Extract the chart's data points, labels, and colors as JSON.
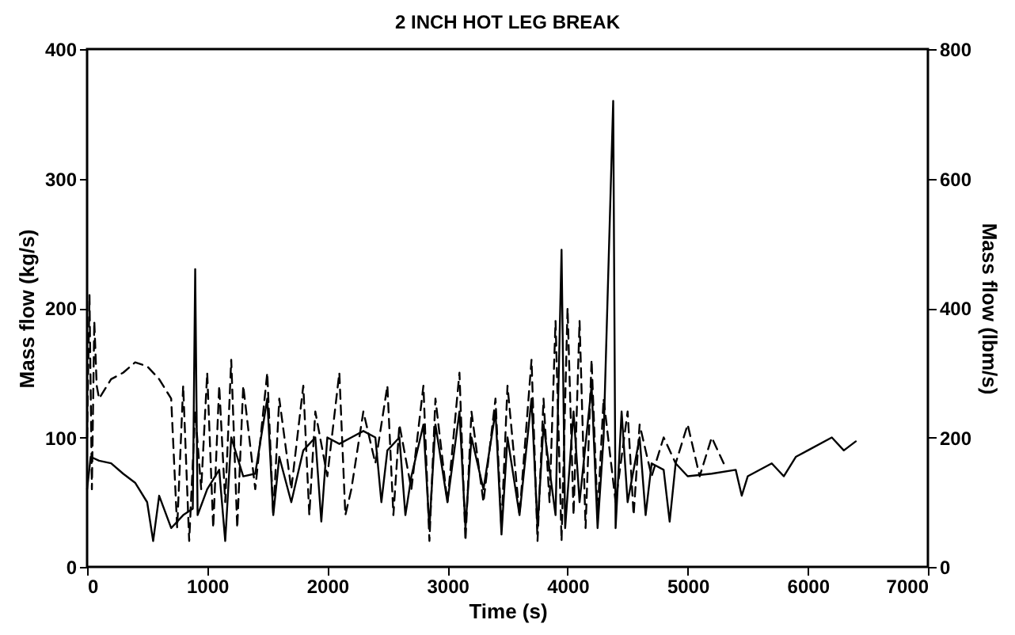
{
  "chart_data": {
    "type": "line",
    "title": "2 INCH HOT LEG BREAK",
    "xlabel": "Time (s)",
    "ylabel": "Mass flow (kg/s)",
    "y2label": "Mass flow (lbm/s)",
    "xlim": [
      0,
      7000
    ],
    "xticks": [
      0,
      1000,
      2000,
      3000,
      4000,
      5000,
      6000,
      7000
    ],
    "ylim": [
      0,
      400
    ],
    "yticks": [
      0,
      100,
      200,
      300,
      400
    ],
    "y2lim": [
      0,
      800
    ],
    "y2ticks": [
      0,
      200,
      400,
      600,
      800
    ],
    "series": [
      {
        "color": "#000000",
        "line_style": "dashed",
        "x": [
          0,
          20,
          40,
          60,
          80,
          100,
          200,
          300,
          400,
          500,
          600,
          700,
          750,
          800,
          850,
          900,
          950,
          1000,
          1050,
          1100,
          1150,
          1200,
          1250,
          1300,
          1400,
          1500,
          1550,
          1600,
          1700,
          1800,
          1850,
          1900,
          2000,
          2100,
          2150,
          2200,
          2300,
          2400,
          2500,
          2550,
          2600,
          2700,
          2800,
          2850,
          2900,
          3000,
          3100,
          3150,
          3200,
          3300,
          3400,
          3450,
          3500,
          3600,
          3700,
          3750,
          3800,
          3850,
          3900,
          3950,
          4000,
          4050,
          4100,
          4150,
          4200,
          4250,
          4300,
          4400,
          4500,
          4550,
          4600,
          4700,
          4800,
          4900,
          5000,
          5100,
          5200,
          5300
        ],
        "values": [
          100,
          210,
          60,
          190,
          140,
          130,
          145,
          150,
          158,
          155,
          145,
          130,
          30,
          140,
          20,
          120,
          60,
          150,
          30,
          140,
          50,
          160,
          30,
          140,
          60,
          150,
          40,
          130,
          60,
          140,
          40,
          120,
          70,
          150,
          40,
          60,
          120,
          80,
          140,
          40,
          110,
          60,
          140,
          20,
          130,
          50,
          150,
          20,
          120,
          50,
          130,
          30,
          140,
          40,
          160,
          20,
          130,
          50,
          190,
          20,
          200,
          40,
          190,
          30,
          160,
          40,
          130,
          50,
          120,
          40,
          110,
          70,
          100,
          80,
          110,
          70,
          100,
          80
        ]
      },
      {
        "color": "#000000",
        "line_style": "solid",
        "x": [
          0,
          30,
          100,
          200,
          300,
          400,
          500,
          550,
          600,
          700,
          800,
          880,
          900,
          920,
          1000,
          1100,
          1150,
          1200,
          1300,
          1400,
          1500,
          1550,
          1600,
          1700,
          1800,
          1900,
          1950,
          2000,
          2100,
          2200,
          2300,
          2400,
          2450,
          2500,
          2600,
          2650,
          2700,
          2800,
          2850,
          2900,
          3000,
          3100,
          3150,
          3200,
          3300,
          3400,
          3450,
          3500,
          3600,
          3700,
          3750,
          3800,
          3900,
          3950,
          3980,
          4050,
          4100,
          4200,
          4250,
          4300,
          4380,
          4400,
          4450,
          4500,
          4600,
          4650,
          4700,
          4800,
          4850,
          4900,
          5000,
          5200,
          5400,
          5450,
          5500,
          5700,
          5800,
          5900,
          6000,
          6200,
          6300,
          6400
        ],
        "values": [
          60,
          85,
          82,
          80,
          72,
          65,
          50,
          20,
          55,
          30,
          40,
          45,
          230,
          40,
          60,
          75,
          20,
          100,
          70,
          72,
          130,
          40,
          85,
          50,
          90,
          100,
          35,
          100,
          95,
          100,
          105,
          100,
          50,
          90,
          100,
          40,
          70,
          110,
          30,
          110,
          50,
          120,
          30,
          100,
          60,
          120,
          25,
          100,
          40,
          130,
          30,
          110,
          40,
          245,
          30,
          120,
          50,
          140,
          30,
          100,
          360,
          30,
          120,
          50,
          100,
          40,
          80,
          75,
          35,
          80,
          70,
          72,
          75,
          55,
          70,
          80,
          70,
          85,
          90,
          100,
          90,
          97
        ]
      }
    ]
  }
}
